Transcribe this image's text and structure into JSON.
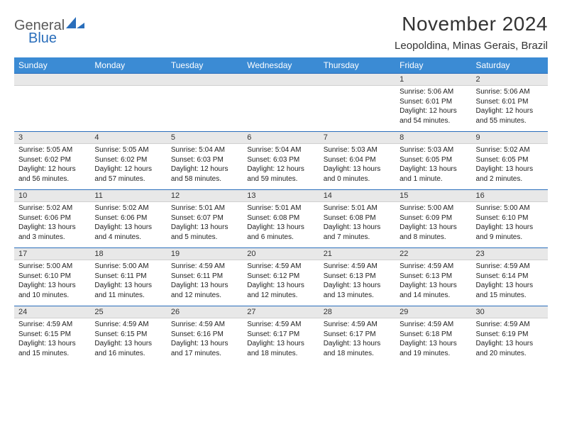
{
  "brand": {
    "general": "General",
    "blue": "Blue"
  },
  "title": "November 2024",
  "location": "Leopoldina, Minas Gerais, Brazil",
  "colors": {
    "header_bg": "#3b8bd4",
    "header_text": "#ffffff",
    "daynum_bg": "#e8e8e8",
    "week_border": "#2a6ebb",
    "logo_blue": "#2a6ebb",
    "logo_gray": "#5a5a5a"
  },
  "weekdays": [
    "Sunday",
    "Monday",
    "Tuesday",
    "Wednesday",
    "Thursday",
    "Friday",
    "Saturday"
  ],
  "weeks": [
    [
      {
        "n": "",
        "sr": "",
        "ss": "",
        "dl": ""
      },
      {
        "n": "",
        "sr": "",
        "ss": "",
        "dl": ""
      },
      {
        "n": "",
        "sr": "",
        "ss": "",
        "dl": ""
      },
      {
        "n": "",
        "sr": "",
        "ss": "",
        "dl": ""
      },
      {
        "n": "",
        "sr": "",
        "ss": "",
        "dl": ""
      },
      {
        "n": "1",
        "sr": "Sunrise: 5:06 AM",
        "ss": "Sunset: 6:01 PM",
        "dl": "Daylight: 12 hours and 54 minutes."
      },
      {
        "n": "2",
        "sr": "Sunrise: 5:06 AM",
        "ss": "Sunset: 6:01 PM",
        "dl": "Daylight: 12 hours and 55 minutes."
      }
    ],
    [
      {
        "n": "3",
        "sr": "Sunrise: 5:05 AM",
        "ss": "Sunset: 6:02 PM",
        "dl": "Daylight: 12 hours and 56 minutes."
      },
      {
        "n": "4",
        "sr": "Sunrise: 5:05 AM",
        "ss": "Sunset: 6:02 PM",
        "dl": "Daylight: 12 hours and 57 minutes."
      },
      {
        "n": "5",
        "sr": "Sunrise: 5:04 AM",
        "ss": "Sunset: 6:03 PM",
        "dl": "Daylight: 12 hours and 58 minutes."
      },
      {
        "n": "6",
        "sr": "Sunrise: 5:04 AM",
        "ss": "Sunset: 6:03 PM",
        "dl": "Daylight: 12 hours and 59 minutes."
      },
      {
        "n": "7",
        "sr": "Sunrise: 5:03 AM",
        "ss": "Sunset: 6:04 PM",
        "dl": "Daylight: 13 hours and 0 minutes."
      },
      {
        "n": "8",
        "sr": "Sunrise: 5:03 AM",
        "ss": "Sunset: 6:05 PM",
        "dl": "Daylight: 13 hours and 1 minute."
      },
      {
        "n": "9",
        "sr": "Sunrise: 5:02 AM",
        "ss": "Sunset: 6:05 PM",
        "dl": "Daylight: 13 hours and 2 minutes."
      }
    ],
    [
      {
        "n": "10",
        "sr": "Sunrise: 5:02 AM",
        "ss": "Sunset: 6:06 PM",
        "dl": "Daylight: 13 hours and 3 minutes."
      },
      {
        "n": "11",
        "sr": "Sunrise: 5:02 AM",
        "ss": "Sunset: 6:06 PM",
        "dl": "Daylight: 13 hours and 4 minutes."
      },
      {
        "n": "12",
        "sr": "Sunrise: 5:01 AM",
        "ss": "Sunset: 6:07 PM",
        "dl": "Daylight: 13 hours and 5 minutes."
      },
      {
        "n": "13",
        "sr": "Sunrise: 5:01 AM",
        "ss": "Sunset: 6:08 PM",
        "dl": "Daylight: 13 hours and 6 minutes."
      },
      {
        "n": "14",
        "sr": "Sunrise: 5:01 AM",
        "ss": "Sunset: 6:08 PM",
        "dl": "Daylight: 13 hours and 7 minutes."
      },
      {
        "n": "15",
        "sr": "Sunrise: 5:00 AM",
        "ss": "Sunset: 6:09 PM",
        "dl": "Daylight: 13 hours and 8 minutes."
      },
      {
        "n": "16",
        "sr": "Sunrise: 5:00 AM",
        "ss": "Sunset: 6:10 PM",
        "dl": "Daylight: 13 hours and 9 minutes."
      }
    ],
    [
      {
        "n": "17",
        "sr": "Sunrise: 5:00 AM",
        "ss": "Sunset: 6:10 PM",
        "dl": "Daylight: 13 hours and 10 minutes."
      },
      {
        "n": "18",
        "sr": "Sunrise: 5:00 AM",
        "ss": "Sunset: 6:11 PM",
        "dl": "Daylight: 13 hours and 11 minutes."
      },
      {
        "n": "19",
        "sr": "Sunrise: 4:59 AM",
        "ss": "Sunset: 6:11 PM",
        "dl": "Daylight: 13 hours and 12 minutes."
      },
      {
        "n": "20",
        "sr": "Sunrise: 4:59 AM",
        "ss": "Sunset: 6:12 PM",
        "dl": "Daylight: 13 hours and 12 minutes."
      },
      {
        "n": "21",
        "sr": "Sunrise: 4:59 AM",
        "ss": "Sunset: 6:13 PM",
        "dl": "Daylight: 13 hours and 13 minutes."
      },
      {
        "n": "22",
        "sr": "Sunrise: 4:59 AM",
        "ss": "Sunset: 6:13 PM",
        "dl": "Daylight: 13 hours and 14 minutes."
      },
      {
        "n": "23",
        "sr": "Sunrise: 4:59 AM",
        "ss": "Sunset: 6:14 PM",
        "dl": "Daylight: 13 hours and 15 minutes."
      }
    ],
    [
      {
        "n": "24",
        "sr": "Sunrise: 4:59 AM",
        "ss": "Sunset: 6:15 PM",
        "dl": "Daylight: 13 hours and 15 minutes."
      },
      {
        "n": "25",
        "sr": "Sunrise: 4:59 AM",
        "ss": "Sunset: 6:15 PM",
        "dl": "Daylight: 13 hours and 16 minutes."
      },
      {
        "n": "26",
        "sr": "Sunrise: 4:59 AM",
        "ss": "Sunset: 6:16 PM",
        "dl": "Daylight: 13 hours and 17 minutes."
      },
      {
        "n": "27",
        "sr": "Sunrise: 4:59 AM",
        "ss": "Sunset: 6:17 PM",
        "dl": "Daylight: 13 hours and 18 minutes."
      },
      {
        "n": "28",
        "sr": "Sunrise: 4:59 AM",
        "ss": "Sunset: 6:17 PM",
        "dl": "Daylight: 13 hours and 18 minutes."
      },
      {
        "n": "29",
        "sr": "Sunrise: 4:59 AM",
        "ss": "Sunset: 6:18 PM",
        "dl": "Daylight: 13 hours and 19 minutes."
      },
      {
        "n": "30",
        "sr": "Sunrise: 4:59 AM",
        "ss": "Sunset: 6:19 PM",
        "dl": "Daylight: 13 hours and 20 minutes."
      }
    ]
  ]
}
